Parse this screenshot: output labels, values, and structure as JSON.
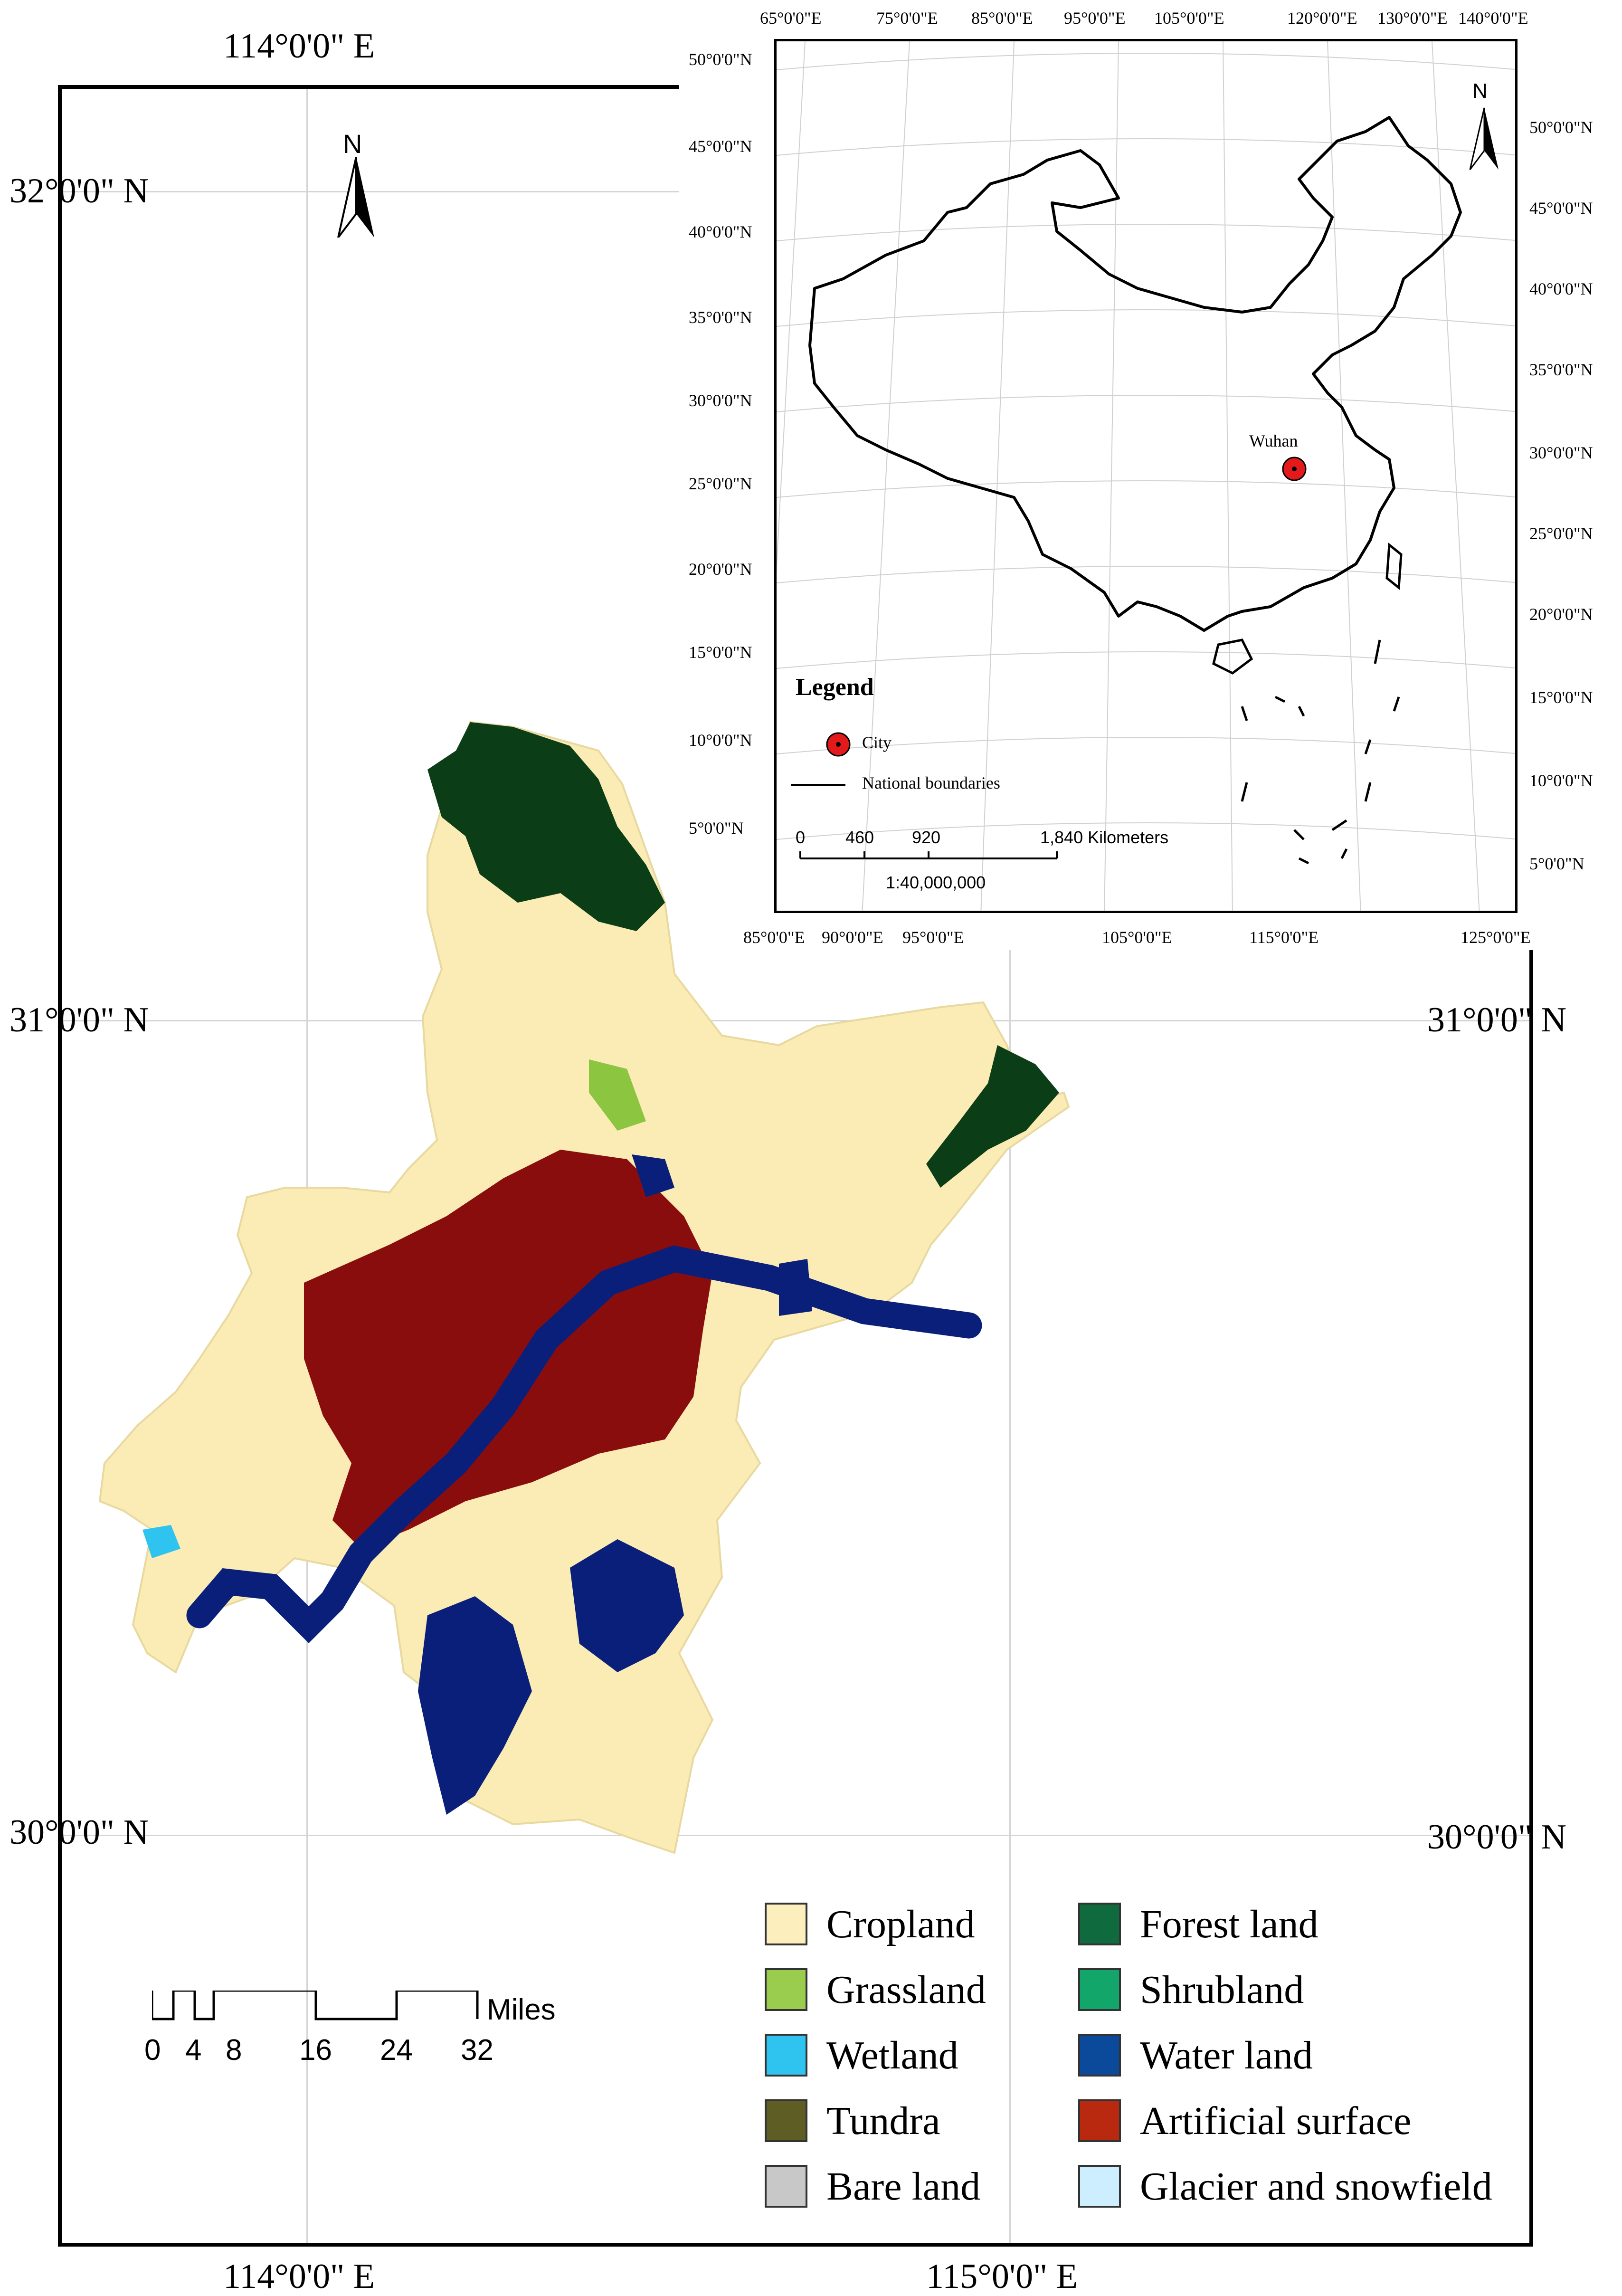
{
  "main_map": {
    "top_coord": "114°0'0\" E",
    "bottom_coords": [
      "114°0'0\" E",
      "115°0'0\" E"
    ],
    "left_coords": [
      "32°0'0\" N",
      "31°0'0\" N",
      "30°0'0\" N"
    ],
    "right_coords": [
      "31°0'0\" N",
      "30°0'0\" N"
    ],
    "north_label": "N",
    "scale": {
      "unit": "Miles",
      "ticks": [
        "0",
        "4",
        "8",
        "16",
        "24",
        "32"
      ]
    },
    "region_colors": {
      "cropland": "#fbebb5",
      "artificial": "#8a0d0d",
      "water": "#0a1f7a",
      "forest": "#0b3d17",
      "grass": "#8cc640"
    }
  },
  "inset_map": {
    "top_ticks": [
      "65°0'0\"E",
      "75°0'0\"E",
      "85°0'0\"E",
      "95°0'0\"E",
      "105°0'0\"E",
      "120°0'0\"E",
      "130°0'0\"E",
      "140°0'0\"E"
    ],
    "bottom_ticks": [
      "85°0'0\"E",
      "90°0'0\"E",
      "95°0'0\"E",
      "105°0'0\"E",
      "115°0'0\"E",
      "125°0'0\"E"
    ],
    "left_ticks": [
      "50°0'0\"N",
      "45°0'0\"N",
      "40°0'0\"N",
      "35°0'0\"N",
      "30°0'0\"N",
      "25°0'0\"N",
      "20°0'0\"N",
      "15°0'0\"N",
      "10°0'0\"N",
      "5°0'0\"N"
    ],
    "right_ticks": [
      "50°0'0\"N",
      "45°0'0\"N",
      "40°0'0\"N",
      "35°0'0\"N",
      "30°0'0\"N",
      "25°0'0\"N",
      "20°0'0\"N",
      "15°0'0\"N",
      "10°0'0\"N",
      "5°0'0\"N"
    ],
    "north_label": "N",
    "city_label": "Wuhan",
    "legend_title": "Legend",
    "legend_city": "City",
    "legend_boundaries": "National boundaries",
    "scale_ticks": [
      "0",
      "460",
      "920",
      "1,840 Kilometers"
    ],
    "scale_ratio": "1:40,000,000",
    "city_color": "#e31a1c"
  },
  "land_cover_legend": [
    {
      "label": "Cropland",
      "color": "#fcefbd"
    },
    {
      "label": "Forest land",
      "color": "#0f6b3d"
    },
    {
      "label": "Grassland",
      "color": "#9acd4d"
    },
    {
      "label": "Shrubland",
      "color": "#12a66a"
    },
    {
      "label": "Wetland",
      "color": "#2fc4ef"
    },
    {
      "label": "Water land",
      "color": "#0b4a9a"
    },
    {
      "label": "Tundra",
      "color": "#5e5e24"
    },
    {
      "label": "Artificial surface",
      "color": "#b8290f"
    },
    {
      "label": "Bare land",
      "color": "#c8c8c8"
    },
    {
      "label": "Glacier and snowfield",
      "color": "#cdeeff"
    }
  ]
}
